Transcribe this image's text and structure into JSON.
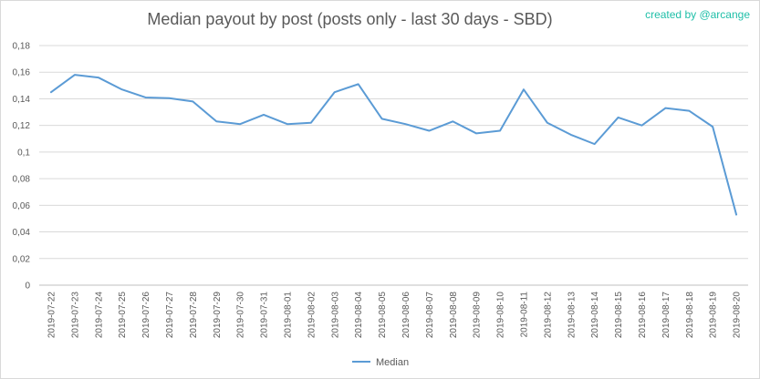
{
  "chart_data": {
    "type": "line",
    "title": "Median payout by post (posts only - last 30 days - SBD)",
    "credit": "created by @arcange",
    "xlabel": "",
    "ylabel": "",
    "ylim": [
      0,
      0.18
    ],
    "yticks": [
      "0",
      "0,02",
      "0,04",
      "0,06",
      "0,08",
      "0,1",
      "0,12",
      "0,14",
      "0,16",
      "0,18"
    ],
    "grid": true,
    "legend_position": "bottom",
    "line_color": "#5b9bd5",
    "categories": [
      "2019-07-22",
      "2019-07-23",
      "2019-07-24",
      "2019-07-25",
      "2019-07-26",
      "2019-07-27",
      "2019-07-28",
      "2019-07-29",
      "2019-07-30",
      "2019-07-31",
      "2019-08-01",
      "2019-08-02",
      "2019-08-03",
      "2019-08-04",
      "2019-08-05",
      "2019-08-06",
      "2019-08-07",
      "2019-08-08",
      "2019-08-09",
      "2019-08-10",
      "2019-08-11",
      "2019-08-12",
      "2019-08-13",
      "2019-08-14",
      "2019-08-15",
      "2019-08-16",
      "2019-08-17",
      "2019-08-18",
      "2019-08-19",
      "2019-08-20"
    ],
    "series": [
      {
        "name": "Median",
        "values": [
          0.145,
          0.158,
          0.156,
          0.147,
          0.141,
          0.1405,
          0.138,
          0.123,
          0.121,
          0.128,
          0.121,
          0.122,
          0.145,
          0.151,
          0.125,
          0.121,
          0.116,
          0.123,
          0.114,
          0.116,
          0.147,
          0.122,
          0.113,
          0.106,
          0.126,
          0.12,
          0.133,
          0.131,
          0.119,
          0.053
        ]
      }
    ]
  }
}
